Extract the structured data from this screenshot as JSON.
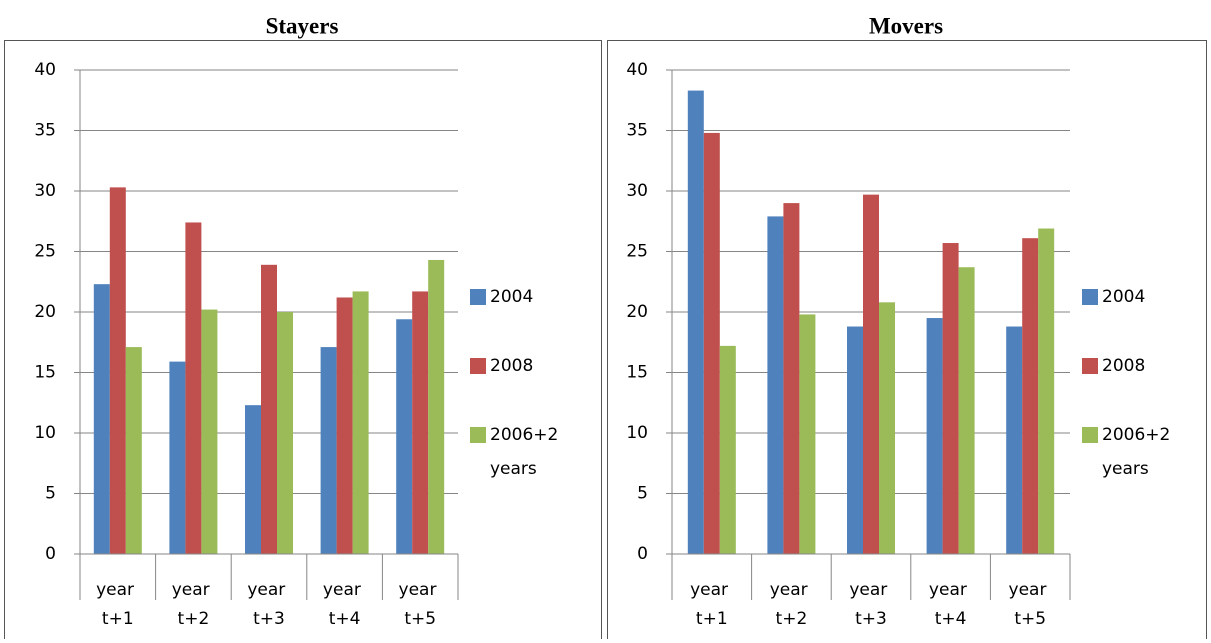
{
  "chart_data": [
    {
      "type": "bar",
      "title": "Stayers",
      "categories": [
        "year t+1",
        "year t+2",
        "year t+3",
        "year t+4",
        "year t+5"
      ],
      "series": [
        {
          "name": "2004",
          "color": "#4f81bd",
          "values": [
            22.3,
            15.9,
            12.3,
            17.1,
            19.4
          ]
        },
        {
          "name": "2008",
          "color": "#c0504d",
          "values": [
            30.3,
            27.4,
            23.9,
            21.2,
            21.7
          ]
        },
        {
          "name": "2006+2 years",
          "color": "#9bbb59",
          "values": [
            17.1,
            20.2,
            20.0,
            21.7,
            24.3
          ]
        }
      ],
      "ylim": [
        0,
        40
      ],
      "yticks": [
        0,
        5,
        10,
        15,
        20,
        25,
        30,
        35,
        40
      ],
      "grid": true,
      "legend": "right"
    },
    {
      "type": "bar",
      "title": "Movers",
      "categories": [
        "year t+1",
        "year t+2",
        "year t+3",
        "year t+4",
        "year t+5"
      ],
      "series": [
        {
          "name": "2004",
          "color": "#4f81bd",
          "values": [
            38.3,
            27.9,
            18.8,
            19.5,
            18.8
          ]
        },
        {
          "name": "2008",
          "color": "#c0504d",
          "values": [
            34.8,
            29.0,
            29.7,
            25.7,
            26.1
          ]
        },
        {
          "name": "2006+2 years",
          "color": "#9bbb59",
          "values": [
            17.2,
            19.8,
            20.8,
            23.7,
            26.9
          ]
        }
      ],
      "ylim": [
        0,
        40
      ],
      "yticks": [
        0,
        5,
        10,
        15,
        20,
        25,
        30,
        35,
        40
      ],
      "grid": true,
      "legend": "right"
    }
  ]
}
